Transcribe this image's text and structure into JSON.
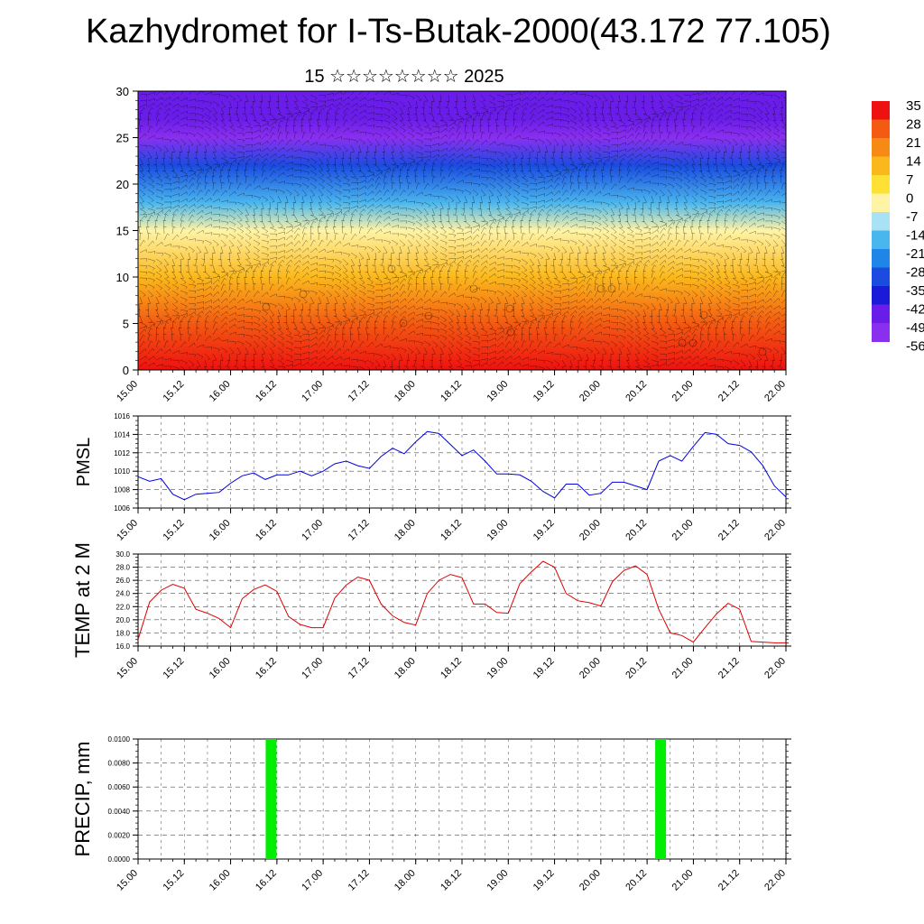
{
  "title": "Kazhydromet for I-Ts-Butak-2000(43.172 77.105)",
  "subtitle": "15 ☆☆☆☆☆☆☆☆ 2025",
  "colors": {
    "pmsl_line": "#0000dd",
    "temp_line": "#dd0000",
    "precip_bar": "#00ee00",
    "grid": "#000000"
  },
  "chart_data": [
    {
      "id": "cross-section",
      "type": "heatmap",
      "ylim": [
        0,
        30
      ],
      "ytick_labels": [
        "0",
        "5",
        "10",
        "15",
        "20",
        "25",
        "30"
      ],
      "x_tick_labels": [
        "15.00",
        "15.12",
        "16.00",
        "16.12",
        "17.00",
        "17.12",
        "18.00",
        "18.12",
        "19.00",
        "19.12",
        "20.00",
        "20.12",
        "21.00",
        "21.12",
        "22.00"
      ],
      "colorbar_labels": [
        "35",
        "28",
        "21",
        "14",
        "7",
        "0",
        "-7",
        "-14",
        "-21",
        "-28",
        "-35",
        "-42",
        "-49",
        "-56"
      ],
      "colorbar_colors": [
        "#ee1111",
        "#f35a12",
        "#f78a15",
        "#fbb81c",
        "#fde233",
        "#fff4a6",
        "#a9e2f4",
        "#4ab6ee",
        "#1f86e8",
        "#1a4ce0",
        "#1b1ad8",
        "#6a1de8",
        "#8a2ff0"
      ],
      "layers": [
        {
          "z": 0,
          "temp": 30
        },
        {
          "z": 5,
          "temp": 21
        },
        {
          "z": 10,
          "temp": 7
        },
        {
          "z": 15,
          "temp": -7
        },
        {
          "z": 18,
          "temp": -21
        },
        {
          "z": 22,
          "temp": -35
        },
        {
          "z": 25,
          "temp": -56
        },
        {
          "z": 27,
          "temp": -49
        },
        {
          "z": 30,
          "temp": -49
        }
      ]
    },
    {
      "id": "pmsl",
      "type": "line",
      "ylabel": "PMSL",
      "ylim": [
        1006,
        1016
      ],
      "ytick_labels": [
        "1006",
        "1008",
        "1010",
        "1012",
        "1014",
        "1016"
      ],
      "x_tick_labels": [
        "15.00",
        "15.12",
        "16.00",
        "16.12",
        "17.00",
        "17.12",
        "18.00",
        "18.12",
        "19.00",
        "19.12",
        "20.00",
        "20.12",
        "21.00",
        "21.12",
        "22.00"
      ],
      "x_hours": [
        0,
        3,
        6,
        9,
        12,
        15,
        18,
        21,
        24,
        27,
        30,
        33,
        36,
        39,
        42,
        45,
        48,
        51,
        54,
        57,
        60,
        63,
        66,
        69,
        72,
        75,
        78,
        81,
        84,
        87,
        90,
        93,
        96,
        99,
        102,
        105,
        108,
        111,
        114,
        117,
        120,
        123,
        126,
        129,
        132,
        135,
        138,
        141,
        144,
        147,
        150,
        153,
        156,
        159,
        162,
        165,
        168
      ],
      "values": [
        1009.4,
        1008.9,
        1009.2,
        1007.5,
        1006.9,
        1007.5,
        1007.6,
        1007.7,
        1008.7,
        1009.5,
        1009.8,
        1009.1,
        1009.6,
        1009.6,
        1010.0,
        1009.5,
        1010.0,
        1010.8,
        1011.1,
        1010.6,
        1010.3,
        1011.6,
        1012.5,
        1011.9,
        1013.2,
        1014.3,
        1014.1,
        1012.9,
        1011.7,
        1012.3,
        1011.1,
        1009.7,
        1009.7,
        1009.6,
        1008.9,
        1007.8,
        1007.1,
        1008.6,
        1008.6,
        1007.4,
        1007.6,
        1008.8,
        1008.8,
        1008.4,
        1008.0,
        1011.1,
        1011.7,
        1011.1,
        1012.7,
        1014.2,
        1014.0,
        1013.0,
        1012.8,
        1012.1,
        1010.6,
        1008.4,
        1007.2
      ]
    },
    {
      "id": "temp2m",
      "type": "line",
      "ylabel": "TEMP at 2 M",
      "ylim": [
        16,
        30
      ],
      "ytick_labels": [
        "16.0",
        "18.0",
        "20.0",
        "22.0",
        "24.0",
        "26.0",
        "28.0",
        "30.0"
      ],
      "x_tick_labels": [
        "15.00",
        "15.12",
        "16.00",
        "16.12",
        "17.00",
        "17.12",
        "18.00",
        "18.12",
        "19.00",
        "19.12",
        "20.00",
        "20.12",
        "21.00",
        "21.12",
        "22.00"
      ],
      "x_hours": [
        0,
        3,
        6,
        9,
        12,
        15,
        18,
        21,
        24,
        27,
        30,
        33,
        36,
        39,
        42,
        45,
        48,
        51,
        54,
        57,
        60,
        63,
        66,
        69,
        72,
        75,
        78,
        81,
        84,
        87,
        90,
        93,
        96,
        99,
        102,
        105,
        108,
        111,
        114,
        117,
        120,
        123,
        126,
        129,
        132,
        135,
        138,
        141,
        144,
        147,
        150,
        153,
        156,
        159,
        162,
        165,
        168
      ],
      "values": [
        17.0,
        22.7,
        24.5,
        25.4,
        24.8,
        21.6,
        21.0,
        20.2,
        18.8,
        23.2,
        24.6,
        25.3,
        24.3,
        20.5,
        19.3,
        18.8,
        18.8,
        23.3,
        25.3,
        26.5,
        26.0,
        22.4,
        20.6,
        19.6,
        19.2,
        24.0,
        26.0,
        26.9,
        26.4,
        22.4,
        22.4,
        21.1,
        21.0,
        25.5,
        27.3,
        28.9,
        28.0,
        24.0,
        22.9,
        22.6,
        22.1,
        25.8,
        27.5,
        28.2,
        26.9,
        21.6,
        18.0,
        17.6,
        16.6,
        18.8,
        20.9,
        22.5,
        21.6,
        16.7,
        16.6,
        16.5,
        16.5
      ]
    },
    {
      "id": "precip",
      "type": "bar",
      "ylabel": "PRECIP, mm",
      "ylim": [
        0,
        0.01
      ],
      "ytick_labels": [
        "0.0000",
        "0.0020",
        "0.0040",
        "0.0060",
        "0.0080",
        "0.0100"
      ],
      "x_tick_labels": [
        "15.00",
        "15.12",
        "16.00",
        "16.12",
        "17.00",
        "17.12",
        "18.00",
        "18.12",
        "19.00",
        "19.12",
        "20.00",
        "20.12",
        "21.00",
        "21.12",
        "22.00"
      ],
      "bars": [
        {
          "x_hour": 34.5,
          "value": 0.01
        },
        {
          "x_hour": 135.5,
          "value": 0.01
        }
      ]
    }
  ]
}
